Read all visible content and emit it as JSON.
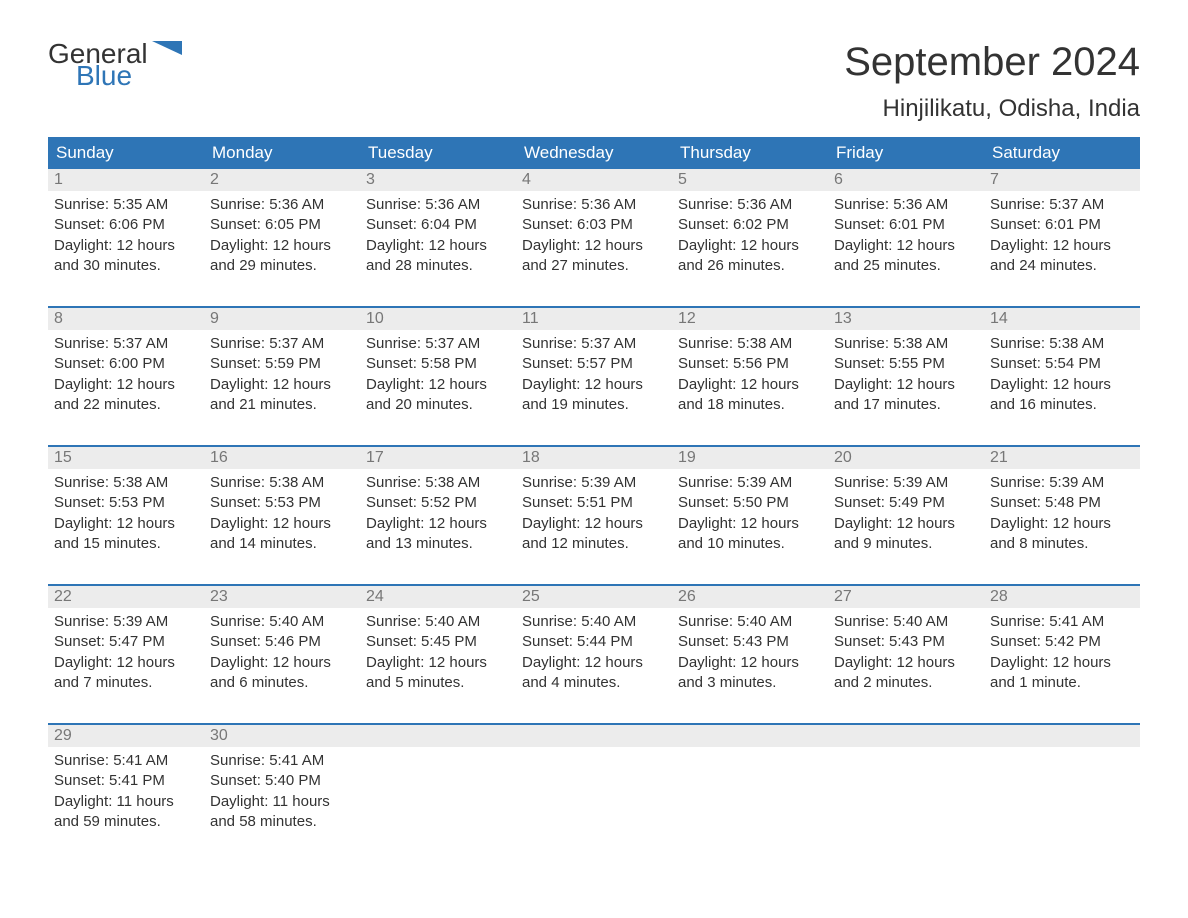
{
  "logo": {
    "general": "General",
    "blue": "Blue"
  },
  "title": "September 2024",
  "location": "Hinjilikatu, Odisha, India",
  "weekdays": [
    "Sunday",
    "Monday",
    "Tuesday",
    "Wednesday",
    "Thursday",
    "Friday",
    "Saturday"
  ],
  "colors": {
    "header_bg": "#2e75b6",
    "header_text": "#ffffff",
    "daynum_bg": "#ececec",
    "daynum_text": "#777777",
    "body_text": "#333333",
    "separator": "#2e75b6",
    "page_bg": "#ffffff"
  },
  "weeks": [
    {
      "days": [
        {
          "num": "1",
          "sunrise": "Sunrise: 5:35 AM",
          "sunset": "Sunset: 6:06 PM",
          "daylight1": "Daylight: 12 hours",
          "daylight2": "and 30 minutes."
        },
        {
          "num": "2",
          "sunrise": "Sunrise: 5:36 AM",
          "sunset": "Sunset: 6:05 PM",
          "daylight1": "Daylight: 12 hours",
          "daylight2": "and 29 minutes."
        },
        {
          "num": "3",
          "sunrise": "Sunrise: 5:36 AM",
          "sunset": "Sunset: 6:04 PM",
          "daylight1": "Daylight: 12 hours",
          "daylight2": "and 28 minutes."
        },
        {
          "num": "4",
          "sunrise": "Sunrise: 5:36 AM",
          "sunset": "Sunset: 6:03 PM",
          "daylight1": "Daylight: 12 hours",
          "daylight2": "and 27 minutes."
        },
        {
          "num": "5",
          "sunrise": "Sunrise: 5:36 AM",
          "sunset": "Sunset: 6:02 PM",
          "daylight1": "Daylight: 12 hours",
          "daylight2": "and 26 minutes."
        },
        {
          "num": "6",
          "sunrise": "Sunrise: 5:36 AM",
          "sunset": "Sunset: 6:01 PM",
          "daylight1": "Daylight: 12 hours",
          "daylight2": "and 25 minutes."
        },
        {
          "num": "7",
          "sunrise": "Sunrise: 5:37 AM",
          "sunset": "Sunset: 6:01 PM",
          "daylight1": "Daylight: 12 hours",
          "daylight2": "and 24 minutes."
        }
      ]
    },
    {
      "days": [
        {
          "num": "8",
          "sunrise": "Sunrise: 5:37 AM",
          "sunset": "Sunset: 6:00 PM",
          "daylight1": "Daylight: 12 hours",
          "daylight2": "and 22 minutes."
        },
        {
          "num": "9",
          "sunrise": "Sunrise: 5:37 AM",
          "sunset": "Sunset: 5:59 PM",
          "daylight1": "Daylight: 12 hours",
          "daylight2": "and 21 minutes."
        },
        {
          "num": "10",
          "sunrise": "Sunrise: 5:37 AM",
          "sunset": "Sunset: 5:58 PM",
          "daylight1": "Daylight: 12 hours",
          "daylight2": "and 20 minutes."
        },
        {
          "num": "11",
          "sunrise": "Sunrise: 5:37 AM",
          "sunset": "Sunset: 5:57 PM",
          "daylight1": "Daylight: 12 hours",
          "daylight2": "and 19 minutes."
        },
        {
          "num": "12",
          "sunrise": "Sunrise: 5:38 AM",
          "sunset": "Sunset: 5:56 PM",
          "daylight1": "Daylight: 12 hours",
          "daylight2": "and 18 minutes."
        },
        {
          "num": "13",
          "sunrise": "Sunrise: 5:38 AM",
          "sunset": "Sunset: 5:55 PM",
          "daylight1": "Daylight: 12 hours",
          "daylight2": "and 17 minutes."
        },
        {
          "num": "14",
          "sunrise": "Sunrise: 5:38 AM",
          "sunset": "Sunset: 5:54 PM",
          "daylight1": "Daylight: 12 hours",
          "daylight2": "and 16 minutes."
        }
      ]
    },
    {
      "days": [
        {
          "num": "15",
          "sunrise": "Sunrise: 5:38 AM",
          "sunset": "Sunset: 5:53 PM",
          "daylight1": "Daylight: 12 hours",
          "daylight2": "and 15 minutes."
        },
        {
          "num": "16",
          "sunrise": "Sunrise: 5:38 AM",
          "sunset": "Sunset: 5:53 PM",
          "daylight1": "Daylight: 12 hours",
          "daylight2": "and 14 minutes."
        },
        {
          "num": "17",
          "sunrise": "Sunrise: 5:38 AM",
          "sunset": "Sunset: 5:52 PM",
          "daylight1": "Daylight: 12 hours",
          "daylight2": "and 13 minutes."
        },
        {
          "num": "18",
          "sunrise": "Sunrise: 5:39 AM",
          "sunset": "Sunset: 5:51 PM",
          "daylight1": "Daylight: 12 hours",
          "daylight2": "and 12 minutes."
        },
        {
          "num": "19",
          "sunrise": "Sunrise: 5:39 AM",
          "sunset": "Sunset: 5:50 PM",
          "daylight1": "Daylight: 12 hours",
          "daylight2": "and 10 minutes."
        },
        {
          "num": "20",
          "sunrise": "Sunrise: 5:39 AM",
          "sunset": "Sunset: 5:49 PM",
          "daylight1": "Daylight: 12 hours",
          "daylight2": "and 9 minutes."
        },
        {
          "num": "21",
          "sunrise": "Sunrise: 5:39 AM",
          "sunset": "Sunset: 5:48 PM",
          "daylight1": "Daylight: 12 hours",
          "daylight2": "and 8 minutes."
        }
      ]
    },
    {
      "days": [
        {
          "num": "22",
          "sunrise": "Sunrise: 5:39 AM",
          "sunset": "Sunset: 5:47 PM",
          "daylight1": "Daylight: 12 hours",
          "daylight2": "and 7 minutes."
        },
        {
          "num": "23",
          "sunrise": "Sunrise: 5:40 AM",
          "sunset": "Sunset: 5:46 PM",
          "daylight1": "Daylight: 12 hours",
          "daylight2": "and 6 minutes."
        },
        {
          "num": "24",
          "sunrise": "Sunrise: 5:40 AM",
          "sunset": "Sunset: 5:45 PM",
          "daylight1": "Daylight: 12 hours",
          "daylight2": "and 5 minutes."
        },
        {
          "num": "25",
          "sunrise": "Sunrise: 5:40 AM",
          "sunset": "Sunset: 5:44 PM",
          "daylight1": "Daylight: 12 hours",
          "daylight2": "and 4 minutes."
        },
        {
          "num": "26",
          "sunrise": "Sunrise: 5:40 AM",
          "sunset": "Sunset: 5:43 PM",
          "daylight1": "Daylight: 12 hours",
          "daylight2": "and 3 minutes."
        },
        {
          "num": "27",
          "sunrise": "Sunrise: 5:40 AM",
          "sunset": "Sunset: 5:43 PM",
          "daylight1": "Daylight: 12 hours",
          "daylight2": "and 2 minutes."
        },
        {
          "num": "28",
          "sunrise": "Sunrise: 5:41 AM",
          "sunset": "Sunset: 5:42 PM",
          "daylight1": "Daylight: 12 hours",
          "daylight2": "and 1 minute."
        }
      ]
    },
    {
      "days": [
        {
          "num": "29",
          "sunrise": "Sunrise: 5:41 AM",
          "sunset": "Sunset: 5:41 PM",
          "daylight1": "Daylight: 11 hours",
          "daylight2": "and 59 minutes."
        },
        {
          "num": "30",
          "sunrise": "Sunrise: 5:41 AM",
          "sunset": "Sunset: 5:40 PM",
          "daylight1": "Daylight: 11 hours",
          "daylight2": "and 58 minutes."
        },
        {
          "num": "",
          "sunrise": "",
          "sunset": "",
          "daylight1": "",
          "daylight2": ""
        },
        {
          "num": "",
          "sunrise": "",
          "sunset": "",
          "daylight1": "",
          "daylight2": ""
        },
        {
          "num": "",
          "sunrise": "",
          "sunset": "",
          "daylight1": "",
          "daylight2": ""
        },
        {
          "num": "",
          "sunrise": "",
          "sunset": "",
          "daylight1": "",
          "daylight2": ""
        },
        {
          "num": "",
          "sunrise": "",
          "sunset": "",
          "daylight1": "",
          "daylight2": ""
        }
      ]
    }
  ]
}
